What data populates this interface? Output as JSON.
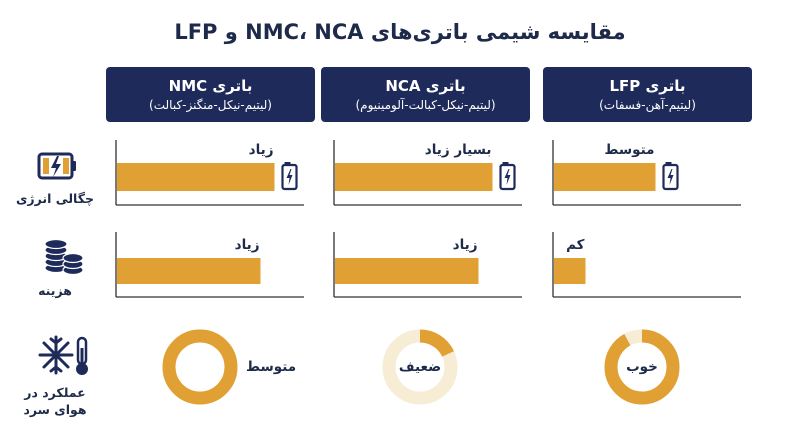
{
  "colors": {
    "navy": "#1e2a5a",
    "orange": "#e1a033",
    "ring_light": "#f7ecd4",
    "axis": "#333333"
  },
  "title": "مقایسه شیمی باتری‌های NMC، NCA و LFP",
  "columns": [
    {
      "name": "باتری NMC",
      "sub": "(لیتیم-نیکل-منگنز-کبالت)"
    },
    {
      "name": "باتری NCA",
      "sub": "(لیتیم-نیکل-کبالت-آلومینیوم)"
    },
    {
      "name": "باتری LFP",
      "sub": "(لیتیم-آهن-فسفات)"
    }
  ],
  "rows": {
    "energy": {
      "label": "چگالی انرژی",
      "icon": "battery-charging-icon"
    },
    "cost": {
      "label": "هزینه",
      "icon": "coin-stack-icon"
    },
    "cold": {
      "label_line1": "عملکرد در",
      "label_line2": "هوای سرد",
      "icon": "snowflake-thermometer-icon"
    }
  },
  "chart_data": [
    {
      "type": "bar",
      "row": "energy",
      "categories": [
        "NMC",
        "NCA",
        "LFP"
      ],
      "values": [
        0.9,
        0.9,
        0.58
      ],
      "labels": [
        "زیاد",
        "بسیار زیاد",
        "متوسط"
      ],
      "end_icon": "battery-charging-icon"
    },
    {
      "type": "bar",
      "row": "cost",
      "categories": [
        "NMC",
        "NCA",
        "LFP"
      ],
      "values": [
        0.82,
        0.82,
        0.18
      ],
      "labels": [
        "زیاد",
        "زیاد",
        "کم"
      ]
    },
    {
      "type": "pie",
      "row": "cold",
      "categories": [
        "NMC",
        "NCA",
        "LFP"
      ],
      "values": [
        1.0,
        0.18,
        0.92
      ],
      "labels": [
        "متوسط",
        "ضعیف",
        "خوب"
      ]
    }
  ]
}
